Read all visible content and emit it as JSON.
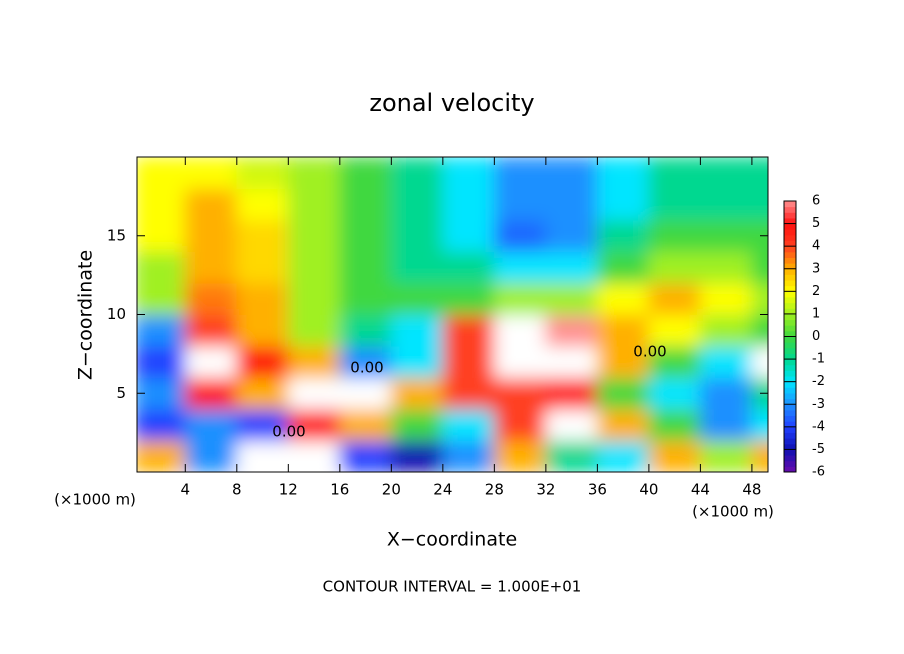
{
  "chart_data": {
    "type": "contour",
    "title": "zonal velocity",
    "x_label": "X−coordinate",
    "y_label": "Z−coordinate",
    "x_unit": "(×1000 m)",
    "x_unit_right": "(×1000 m)",
    "footer": "CONTOUR INTERVAL = 1.000E+01",
    "contour_labels": [
      "0.00",
      "0.00",
      "0.00"
    ],
    "x": [
      2,
      6,
      10,
      14,
      18,
      22,
      26,
      30,
      34,
      38,
      42,
      46,
      50
    ],
    "z": [
      1,
      3,
      5,
      7,
      9,
      11,
      13,
      15,
      17,
      19
    ],
    "values": [
      [
        3,
        -3,
        -7,
        -7,
        -4,
        -5,
        -3,
        3,
        -1,
        -2,
        3,
        1,
        3
      ],
      [
        -4,
        -3,
        -4,
        5,
        3,
        0,
        -2,
        4,
        7,
        3,
        0,
        -3,
        -2
      ],
      [
        -3,
        5,
        3,
        7,
        7,
        3,
        4,
        4,
        5,
        0,
        -2,
        -3,
        -1
      ],
      [
        -4,
        7,
        5,
        3,
        -3,
        -2,
        4,
        7,
        7,
        3,
        0,
        -2,
        7
      ],
      [
        -3,
        4,
        3,
        1,
        -1,
        -2,
        4,
        7,
        6,
        3,
        2,
        1,
        0
      ],
      [
        1,
        3.5,
        3,
        1,
        0,
        0,
        0,
        1,
        1,
        2,
        3,
        2,
        1
      ],
      [
        1,
        3,
        2.5,
        1,
        0,
        -1,
        -1,
        -2,
        -2,
        0,
        1,
        1,
        0
      ],
      [
        2,
        3,
        2.5,
        1,
        0,
        -1,
        -2,
        -3.5,
        -3,
        -1,
        0,
        0,
        0
      ],
      [
        2,
        3,
        2,
        1,
        0,
        -1,
        -2,
        -3,
        -3,
        -2,
        -1,
        -1,
        -1
      ],
      [
        2,
        2,
        1.5,
        1,
        0,
        -1,
        -2,
        -3,
        -3,
        -2,
        -1,
        -1,
        -1
      ]
    ],
    "xlim": [
      0.25,
      49.25
    ],
    "ylim": [
      0,
      20
    ],
    "xticks": [
      4,
      8,
      12,
      16,
      20,
      24,
      28,
      32,
      36,
      40,
      44,
      48
    ],
    "yticks": [
      5,
      10,
      15
    ],
    "colorbar": {
      "lim": [
        -6,
        6
      ],
      "ticks": [
        6,
        5,
        4,
        3,
        2,
        1,
        0,
        -1,
        -2,
        -3,
        -4,
        -5,
        -6
      ],
      "colors": [
        "#6a0dad",
        "#1010b0",
        "#2040ff",
        "#1e90ff",
        "#00e5ff",
        "#00d890",
        "#40d840",
        "#a0f020",
        "#ffff00",
        "#ffb000",
        "#ff4020",
        "#ff1010",
        "#ff9090"
      ],
      "out_of_range": "#ffffff"
    }
  }
}
